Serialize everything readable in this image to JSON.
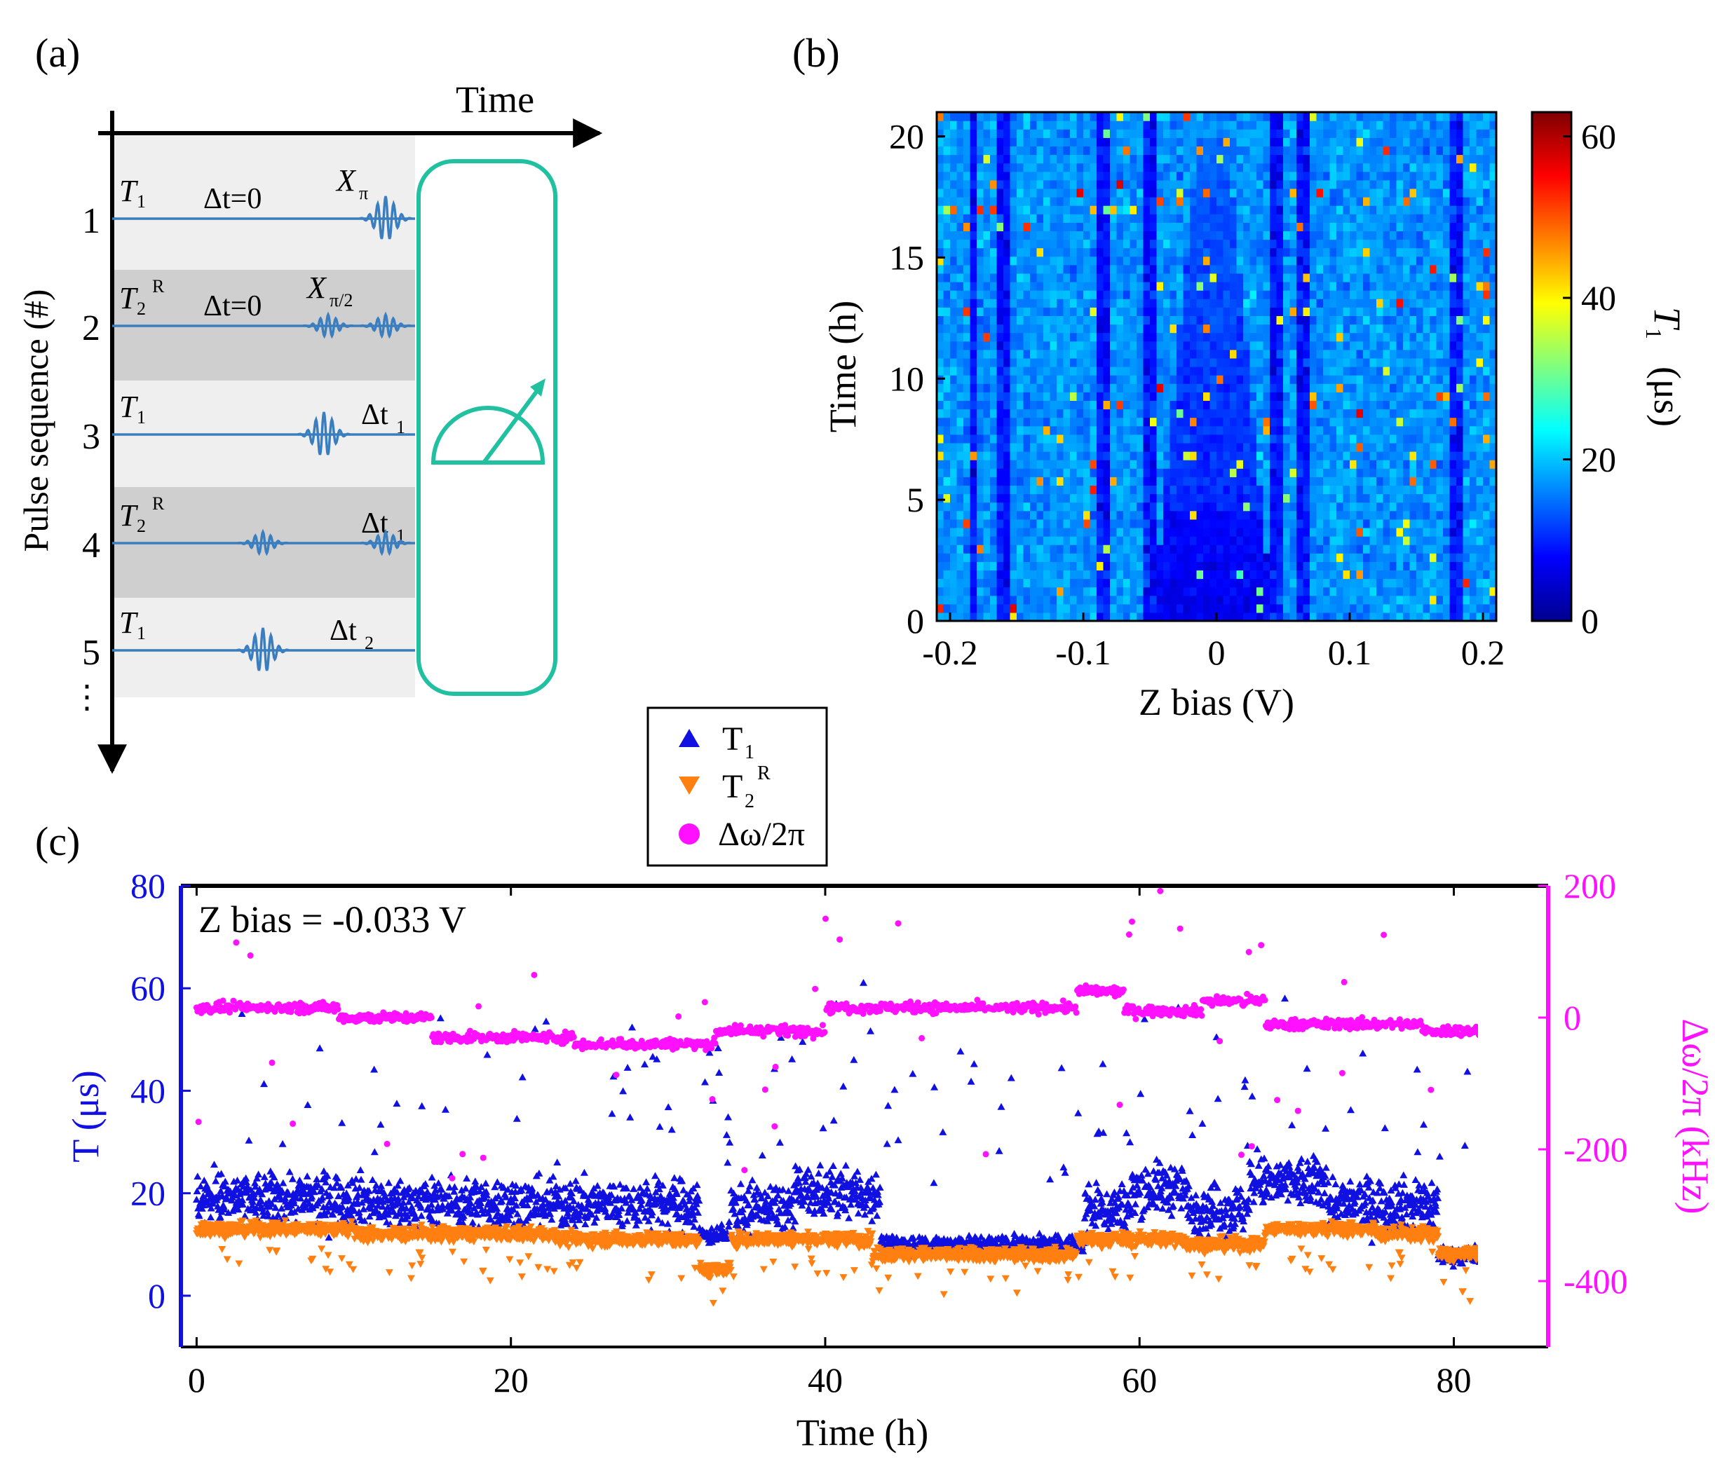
{
  "panel_a": {
    "label": "(a)",
    "axis_time_label": "Time",
    "axis_seq_label": "Pulse sequence (#)",
    "rows": [
      {
        "num": "1",
        "kind": "T",
        "sub": "1",
        "sup": "",
        "delay_prefix": "Δt=0",
        "delay_main": "",
        "delay_sub": "",
        "gate": "X",
        "gate_sub": "π",
        "shaded": false
      },
      {
        "num": "2",
        "kind": "T",
        "sub": "2",
        "sup": "R",
        "delay_prefix": "Δt=0",
        "delay_main": "",
        "delay_sub": "",
        "gate": "X",
        "gate_sub": "π/2",
        "shaded": true
      },
      {
        "num": "3",
        "kind": "T",
        "sub": "1",
        "sup": "",
        "delay_prefix": "",
        "delay_main": "Δt",
        "delay_sub": "1",
        "gate": "",
        "gate_sub": "",
        "shaded": false
      },
      {
        "num": "4",
        "kind": "T",
        "sub": "2",
        "sup": "R",
        "delay_prefix": "",
        "delay_main": "Δt",
        "delay_sub": "1",
        "gate": "",
        "gate_sub": "",
        "shaded": true
      },
      {
        "num": "5",
        "kind": "T",
        "sub": "1",
        "sup": "",
        "delay_prefix": "",
        "delay_main": "Δt",
        "delay_sub": "2",
        "gate": "",
        "gate_sub": "",
        "shaded": false
      }
    ],
    "ellipsis": "⋮",
    "colors": {
      "pulse": "#3a7ebf",
      "meter": "#20c0a0",
      "shade_dark": "#cfcfcf",
      "shade_light": "#efefef"
    }
  },
  "chart_data": [
    {
      "panel": "(b)",
      "type": "heatmap",
      "xlabel": "Z bias (V)",
      "ylabel": "Time (h)",
      "xlim": [
        -0.21,
        0.21
      ],
      "ylim": [
        0,
        21
      ],
      "xticks": [
        "-0.2",
        "-0.1",
        "0",
        "0.1",
        "0.2"
      ],
      "xtick_values": [
        -0.2,
        -0.1,
        0,
        0.1,
        0.2
      ],
      "yticks": [
        "0",
        "5",
        "10",
        "15",
        "20"
      ],
      "ytick_values": [
        0,
        5,
        10,
        15,
        20
      ],
      "colorbar": {
        "label_main": "T",
        "label_sub": "1",
        "label_unit": "(μs)",
        "range": [
          0,
          63
        ],
        "ticks": [
          "0",
          "20",
          "40",
          "60"
        ],
        "tick_values": [
          0,
          20,
          40,
          60
        ]
      },
      "colormap": "jet",
      "grid_cols": 84,
      "grid_rows": 60,
      "background_T1": 17,
      "dark_columns_V": [
        -0.183,
        -0.16,
        -0.085,
        -0.05,
        0.047,
        0.065,
        0.18
      ]
    },
    {
      "panel": "(c)",
      "type": "scatter",
      "xlabel": "Time (h)",
      "ylabel_left": "T (μs)",
      "ylabel_right": "Δω/2π (kHz)",
      "annotation": "Z bias = -0.033 V",
      "xlim": [
        -1,
        86
      ],
      "ylim_left": [
        -10,
        80
      ],
      "ylim_right": [
        -500,
        200
      ],
      "xticks": [
        "0",
        "20",
        "40",
        "60",
        "80"
      ],
      "xtick_values": [
        0,
        20,
        40,
        60,
        80
      ],
      "yticks_left": [
        "0",
        "20",
        "40",
        "60",
        "80"
      ],
      "ytick_values_left": [
        0,
        20,
        40,
        60,
        80
      ],
      "yticks_right": [
        "-400",
        "-200",
        "0",
        "200"
      ],
      "ytick_values_right": [
        -400,
        -200,
        0,
        200
      ],
      "legend_position": "top-center (outside, above plot)",
      "series": [
        {
          "name_main": "T",
          "name_sub": "1",
          "name_sup": "",
          "marker": "triangle-up",
          "color": "#1010e0",
          "axis": "left",
          "segments": [
            [
              0,
              11,
              19
            ],
            [
              11,
              24,
              18
            ],
            [
              24,
              32,
              18
            ],
            [
              32,
              34,
              12
            ],
            [
              34,
              38,
              17
            ],
            [
              38,
              43.5,
              20
            ],
            [
              43.5,
              56.5,
              10
            ],
            [
              56.5,
              59.5,
              17
            ],
            [
              59.5,
              63,
              21
            ],
            [
              63,
              67,
              17
            ],
            [
              67,
              72,
              22
            ],
            [
              72,
              79,
              18
            ],
            [
              79,
              85,
              8
            ]
          ]
        },
        {
          "name_main": "T",
          "name_sub": "2",
          "name_sup": "R",
          "marker": "triangle-down",
          "color": "#ff8010",
          "axis": "left",
          "segments": [
            [
              0,
              10,
              13
            ],
            [
              10,
              23,
              12
            ],
            [
              23,
              32,
              11
            ],
            [
              32,
              34,
              5
            ],
            [
              34,
              43,
              11
            ],
            [
              43,
              56,
              8
            ],
            [
              56,
              63,
              11
            ],
            [
              63,
              68,
              10
            ],
            [
              68,
              75,
              13
            ],
            [
              75,
              79,
              12
            ],
            [
              79,
              85,
              8
            ]
          ]
        },
        {
          "name_main": "Δω/2π",
          "name_sub": "",
          "name_sup": "",
          "marker": "circle",
          "color": "#ff10ff",
          "axis": "right",
          "segments": [
            [
              0,
              9,
              15
            ],
            [
              9,
              15,
              0
            ],
            [
              15,
              24,
              -30
            ],
            [
              24,
              33,
              -40
            ],
            [
              33,
              40,
              -20
            ],
            [
              40,
              45,
              15
            ],
            [
              45,
              48,
              15
            ],
            [
              48,
              56,
              15
            ],
            [
              56,
              59,
              40
            ],
            [
              59,
              64,
              10
            ],
            [
              64,
              68,
              25
            ],
            [
              68,
              78,
              -10
            ],
            [
              78,
              85,
              -20
            ]
          ]
        }
      ]
    }
  ]
}
